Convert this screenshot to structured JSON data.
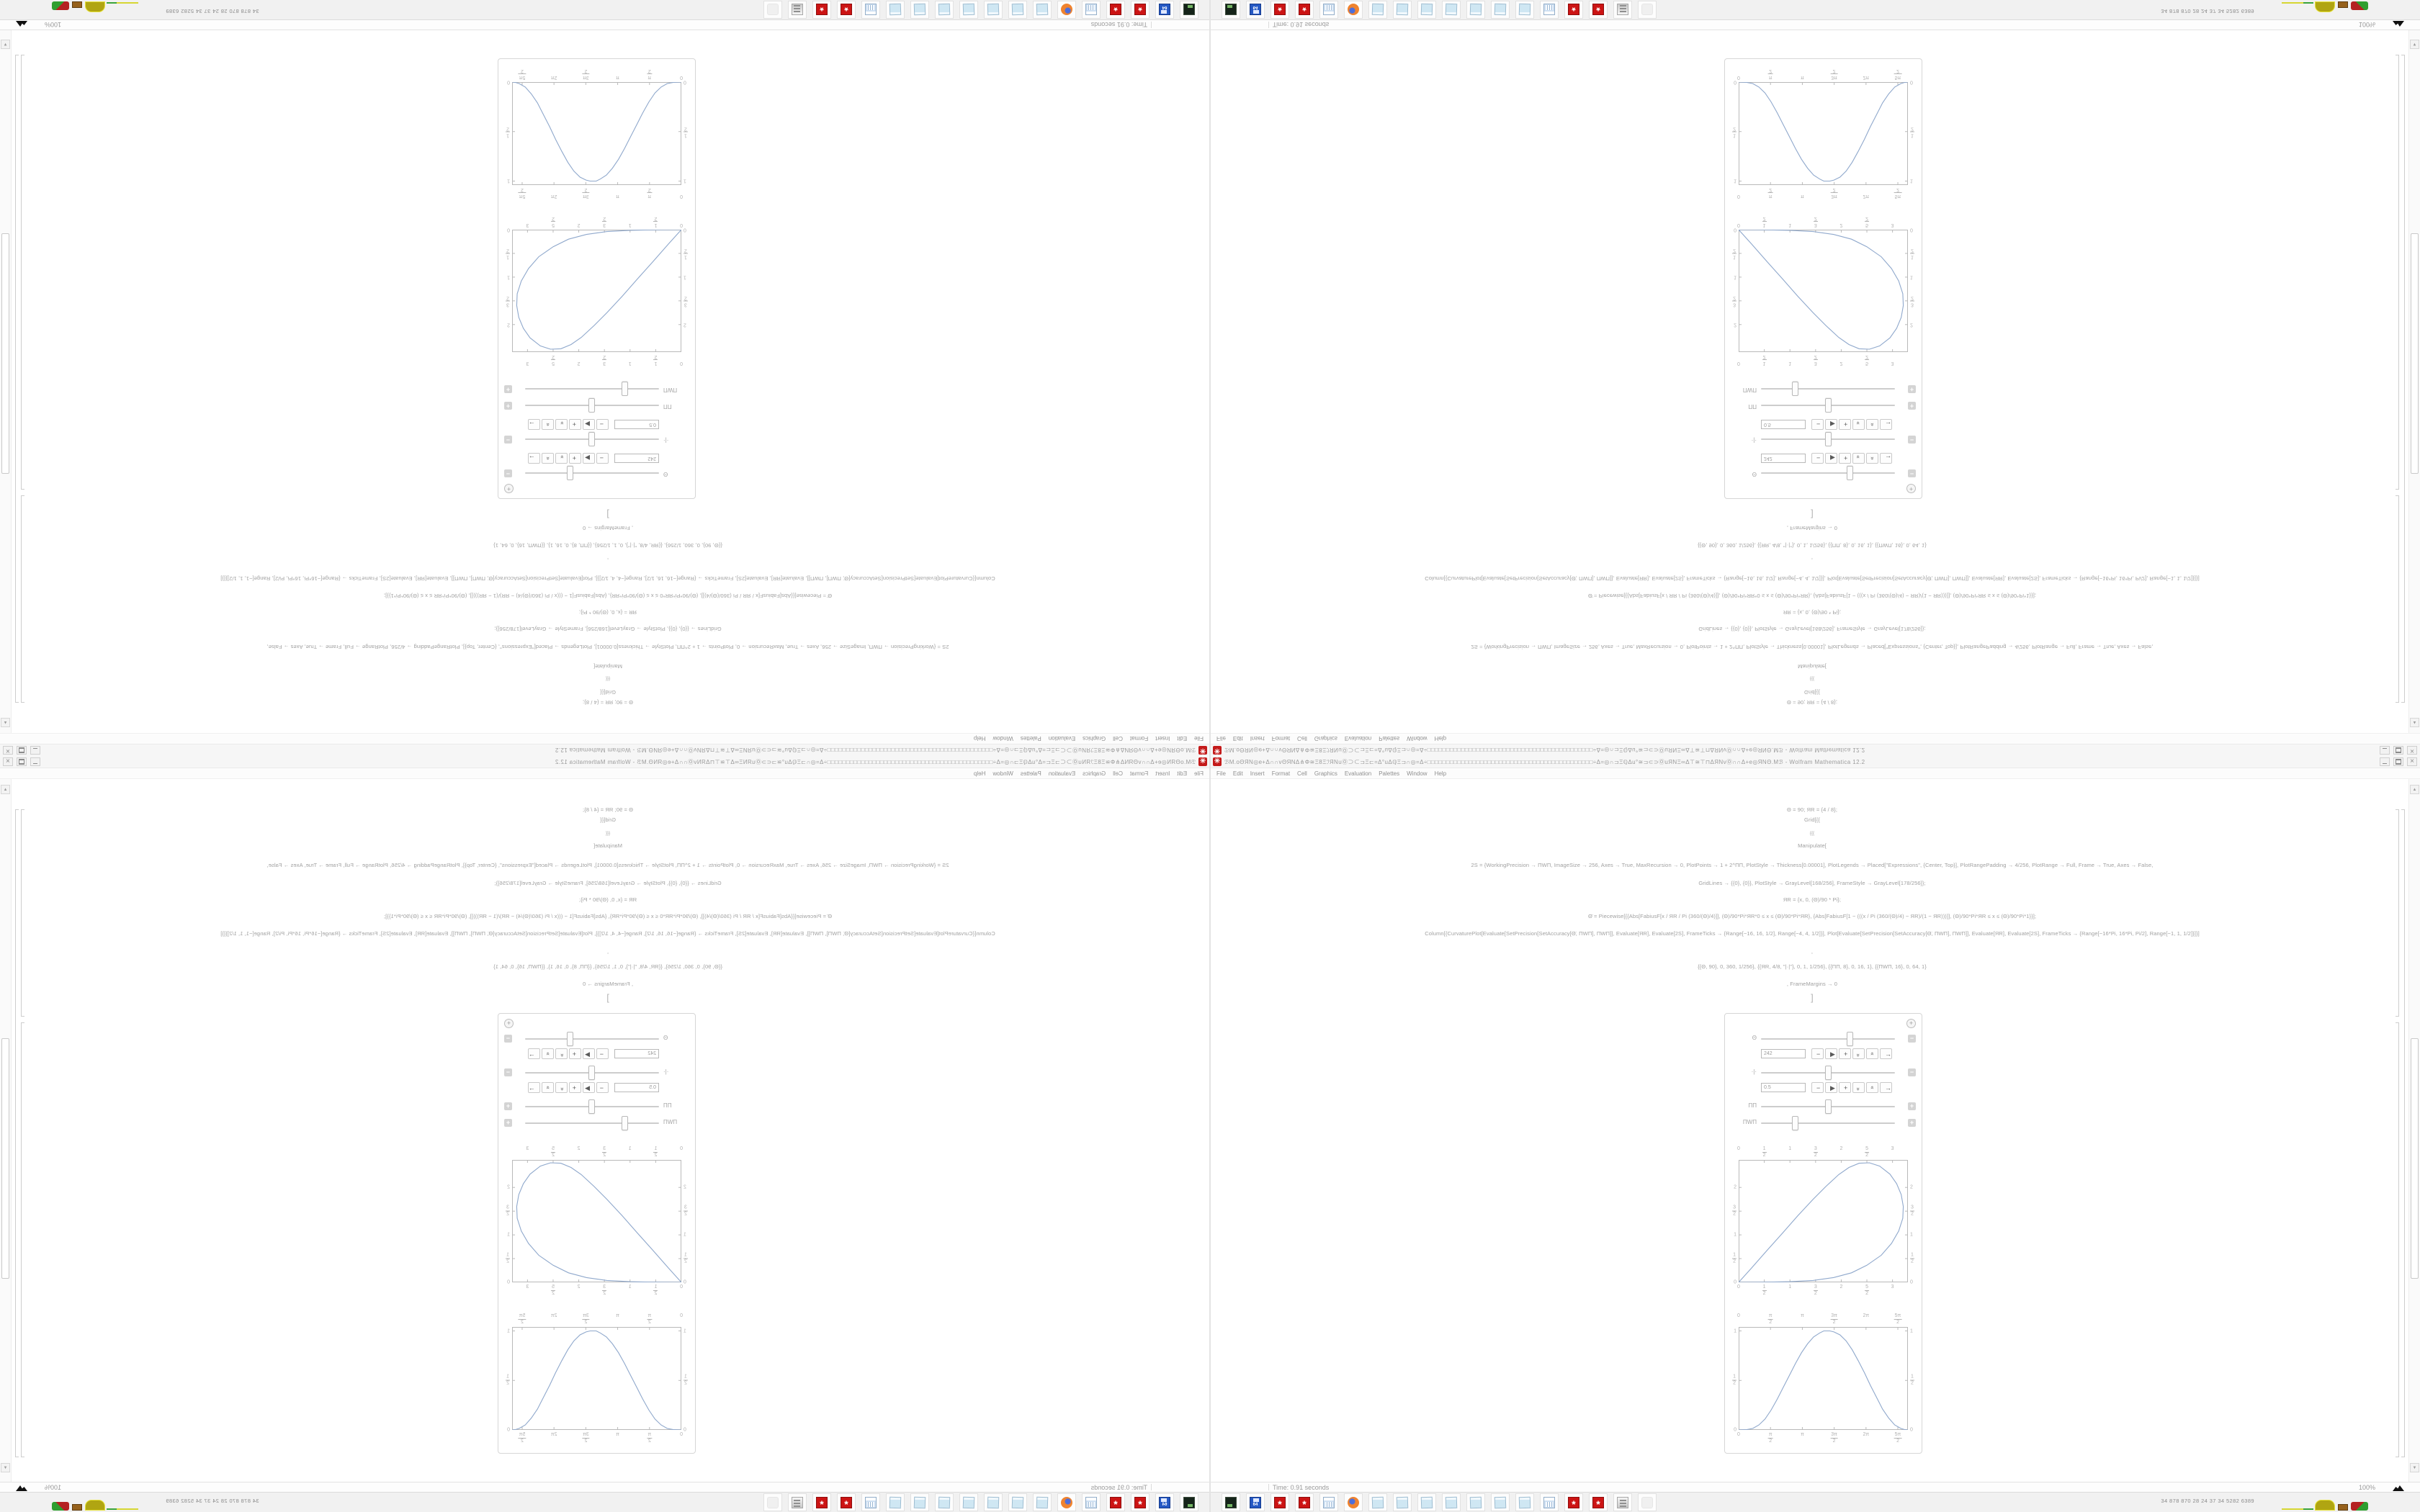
{
  "window": {
    "title": "ℬM.oΘЯN◎e+Δ∩∩vΘЯNΔ⋔Φ≅Ξ8ΞℐЯNuⓄ⊃⊂⊐Ξ⊏=Δ°uΔℚΞ⊐∩◎=Δ÷□□□□□□□□□□□□□□□□□□□□□□□□□□□□□□□□□□□□□□□□□□□□÷Δ=◎∩⊐ΞℚΔu°≅⊐⊂⊃ⓄuЯNΞ∞Δ⊤≅⊤⊓ΔЯNvⓄ∩∩Δ+e◎ЯNΘ.Mℬ - Wolfram Mathematica 12.2",
    "menu": [
      "File",
      "Edit",
      "Insert",
      "Format",
      "Cell",
      "Graphics",
      "Evaluation",
      "Palettes",
      "Window",
      "Help"
    ],
    "controls": {
      "minimize": "minimize",
      "restore": "restore",
      "close": "close"
    }
  },
  "notebook": {
    "code_lines": [
      "Θ = 90; ЯR = {4 / 8};",
      "Grid[{{",
      "{{{",
      "Manipulate[",
      "2S = {WorkingPrecision → ΠWΠ, ImageSize → 256, Axes → True, MaxRecursion → 0, PlotPoints → 1 + 2^ΠΠ, PlotStyle → Thickness[0.00001], PlotLegends → Placed[\"Expressions\", {Center, Top}], PlotRangePadding → 4/256, PlotRange → Full, Frame → True, Axes → False,",
      "GridLines → {{0}, {0}}, PlotStyle → GrayLevel[168/256], FrameStyle → GrayLevel[178/256]};",
      "ЯR = {x, 0, (Θ)/90 * Pi};",
      "Θ̈ = Piecewise[{{Abs[FabiusF[x / ЯR / Pi (360/(Θ)/4)]], (Θ)/90*Pi*ЯR*0 ≤ x ≤ (Θ)/90*Pi*ЯR}, {Abs[FabiusF[1 − (((x / Pi (360/(Θ)/4) − ЯR)/(1 − ЯR)))]], (Θ)/90*Pi*ЯR ≤ x ≤ (Θ)/90*Pi*1}}];",
      "Column[{CurvaturePlot[Evaluate[SetPrecision[SetAccuracy[Θ̈, ΠWΠ], ΠWΠ]], Evaluate[ЯR], Evaluate[2S], FrameTicks → {Range[−16, 16, 1/2], Range[−4, 4, 1/2]}], Plot[Evaluate[SetPrecision[SetAccuracy[Θ̈, ΠWΠ], ΠWΠ]], Evaluate[ЯR], Evaluate[2S], FrameTicks → {Range[−16*Pi, 16*Pi, Pi/2], Range[−1, 1, 1/2]}]}]",
      ",",
      "{{Θ, 90}, 0, 360, 1/256}, {{ЯR, 4/8, \"|·|\"}, 0, 1, 1/256}, {{ΠΠ, 8}, 0, 16, 1}, {{ΠWΠ, 16}, 0, 64, 1}",
      ", FrameMargins → 0",
      "]",
      "]]]"
    ],
    "manipulate": {
      "rows": [
        {
          "label": "Θ",
          "pos": 0.66,
          "toggle": "−",
          "expanded": true,
          "value": "242"
        },
        {
          "label": "·|·",
          "pos": 0.5,
          "toggle": "−",
          "expanded": true,
          "value": "0.5"
        },
        {
          "label": "ΠΠ",
          "pos": 0.5,
          "toggle": "+",
          "expanded": false,
          "value": ""
        },
        {
          "label": "ΠWΠ",
          "pos": 0.25,
          "toggle": "+",
          "expanded": false,
          "value": ""
        }
      ],
      "stepper_buttons": [
        "−",
        "▶",
        "+",
        "up",
        "down",
        "→"
      ],
      "options_button": "+"
    }
  },
  "chart_data": [
    {
      "type": "line",
      "title": "CurvaturePlot output (teardrop curve)",
      "xlabel": "",
      "ylabel": "",
      "x_range": [
        0,
        3.3
      ],
      "y_range": [
        0,
        2.58
      ],
      "xticks": [
        [
          0,
          "0"
        ],
        [
          0.5,
          "1/2"
        ],
        [
          1,
          "1"
        ],
        [
          1.5,
          "3/2"
        ],
        [
          2,
          "2"
        ],
        [
          2.5,
          "5/2"
        ],
        [
          3,
          "3"
        ]
      ],
      "yticks": [
        [
          0,
          "0"
        ],
        [
          0.5,
          "1/2"
        ],
        [
          1,
          "1"
        ],
        [
          1.5,
          "3/2"
        ],
        [
          2,
          "2"
        ]
      ],
      "points": [
        [
          0,
          0
        ],
        [
          0.25,
          0.3
        ],
        [
          0.55,
          0.67
        ],
        [
          0.85,
          1.03
        ],
        [
          1.15,
          1.4
        ],
        [
          1.45,
          1.75
        ],
        [
          1.7,
          2.02
        ],
        [
          1.95,
          2.27
        ],
        [
          2.15,
          2.42
        ],
        [
          2.35,
          2.51
        ],
        [
          2.55,
          2.52
        ],
        [
          2.75,
          2.45
        ],
        [
          2.95,
          2.28
        ],
        [
          3.08,
          2.08
        ],
        [
          3.17,
          1.85
        ],
        [
          3.21,
          1.6
        ],
        [
          3.2,
          1.35
        ],
        [
          3.12,
          1.08
        ],
        [
          2.98,
          0.82
        ],
        [
          2.78,
          0.57
        ],
        [
          2.5,
          0.36
        ],
        [
          2.2,
          0.2
        ],
        [
          1.85,
          0.1
        ],
        [
          1.45,
          0.04
        ],
        [
          1.0,
          0.013
        ],
        [
          0.6,
          0.004
        ],
        [
          0.3,
          0.001
        ],
        [
          0,
          0
        ]
      ]
    },
    {
      "type": "line",
      "title": "Plot output (Fabius bell curve)",
      "xlabel": "",
      "ylabel": "",
      "x_range": [
        0,
        8.35
      ],
      "y_range": [
        0,
        1.04
      ],
      "xticks": [
        [
          0,
          "0"
        ],
        [
          1.5708,
          "π/2"
        ],
        [
          3.1416,
          "π"
        ],
        [
          4.7124,
          "3π/2"
        ],
        [
          6.2832,
          "2π"
        ],
        [
          7.854,
          "5π/2"
        ]
      ],
      "yticks": [
        [
          0,
          "0"
        ],
        [
          0.5,
          "1/2"
        ],
        [
          1,
          "1"
        ]
      ],
      "points": [
        [
          0,
          0
        ],
        [
          0.4,
          0.003
        ],
        [
          0.7,
          0.015
        ],
        [
          1.0,
          0.05
        ],
        [
          1.3,
          0.11
        ],
        [
          1.6,
          0.2
        ],
        [
          1.9,
          0.31
        ],
        [
          2.2,
          0.43
        ],
        [
          2.5,
          0.55
        ],
        [
          2.8,
          0.67
        ],
        [
          3.1,
          0.78
        ],
        [
          3.4,
          0.87
        ],
        [
          3.7,
          0.94
        ],
        [
          4.0,
          0.98
        ],
        [
          4.2,
          1.0
        ],
        [
          4.5,
          1.0
        ],
        [
          4.7,
          0.99
        ],
        [
          5.0,
          0.96
        ],
        [
          5.3,
          0.9
        ],
        [
          5.6,
          0.81
        ],
        [
          5.9,
          0.7
        ],
        [
          6.2,
          0.58
        ],
        [
          6.5,
          0.45
        ],
        [
          6.8,
          0.33
        ],
        [
          7.1,
          0.21
        ],
        [
          7.4,
          0.12
        ],
        [
          7.7,
          0.05
        ],
        [
          8.0,
          0.015
        ],
        [
          8.2,
          0.003
        ],
        [
          8.35,
          0
        ]
      ]
    }
  ],
  "status_bar": {
    "time": "Time: 0.91 seconds",
    "zoom": "100%"
  },
  "taskbar": {
    "icons": [
      "terminal",
      "floppy64",
      "gear",
      "gear",
      "calculator",
      "firefox",
      "notepad",
      "notepad",
      "notepad",
      "notepad",
      "notepad",
      "notepad",
      "notepad",
      "calculator",
      "gear",
      "gear",
      "printer",
      "hand"
    ],
    "tray_text": "34  878  870  28  24  37  34  5282 6389"
  },
  "colors": {
    "curve": "#8fa8cc",
    "frame": "#b9b9b9",
    "tick_label": "#b0b0b0",
    "app_icon_red": "#c41a1a",
    "code_text": "#a0a0a0"
  }
}
